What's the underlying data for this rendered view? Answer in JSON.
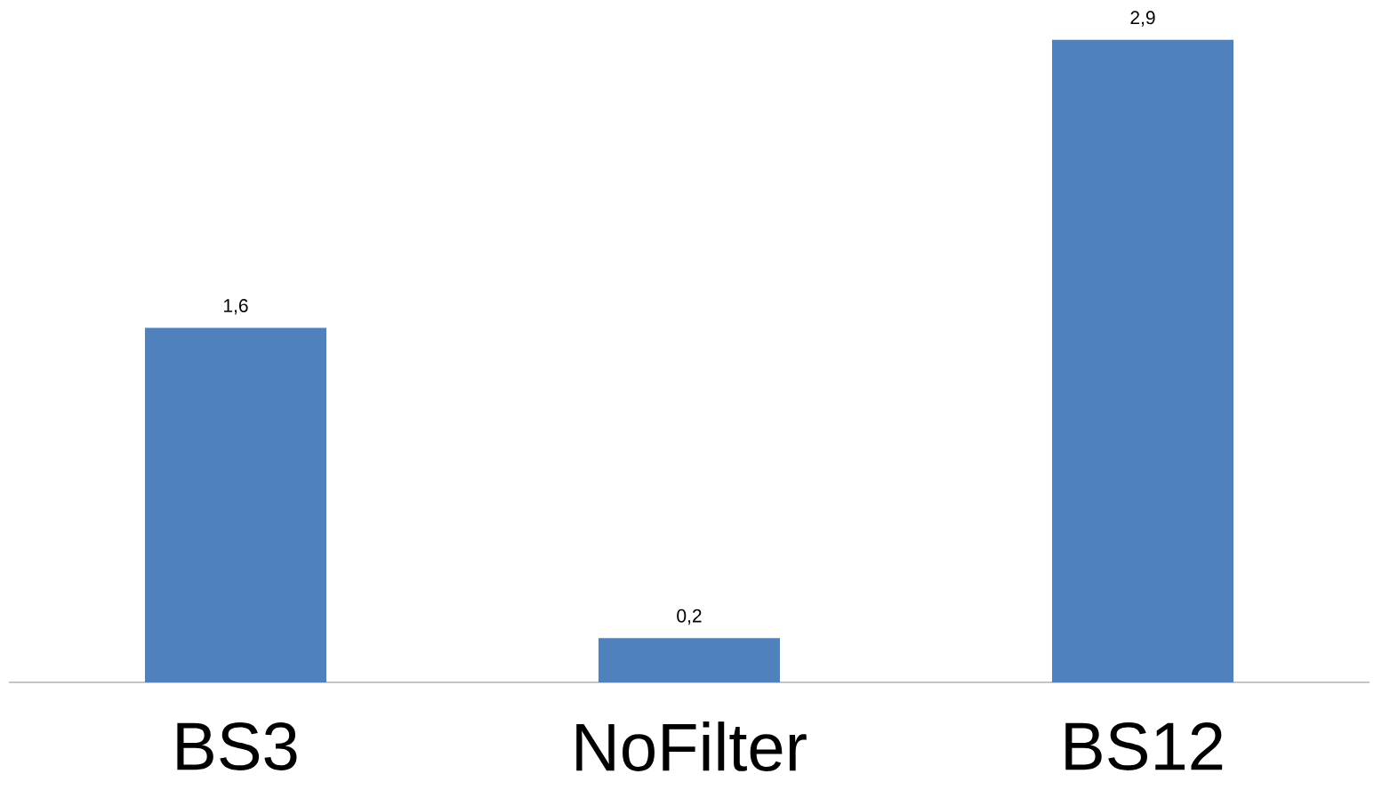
{
  "chart_data": {
    "type": "bar",
    "categories": [
      "BS3",
      "NoFilter",
      "BS12"
    ],
    "values": [
      1.6,
      0.2,
      2.9
    ],
    "color": "#4f81bd",
    "value_labels": [
      "1,6",
      "0,2",
      "2,9"
    ]
  }
}
